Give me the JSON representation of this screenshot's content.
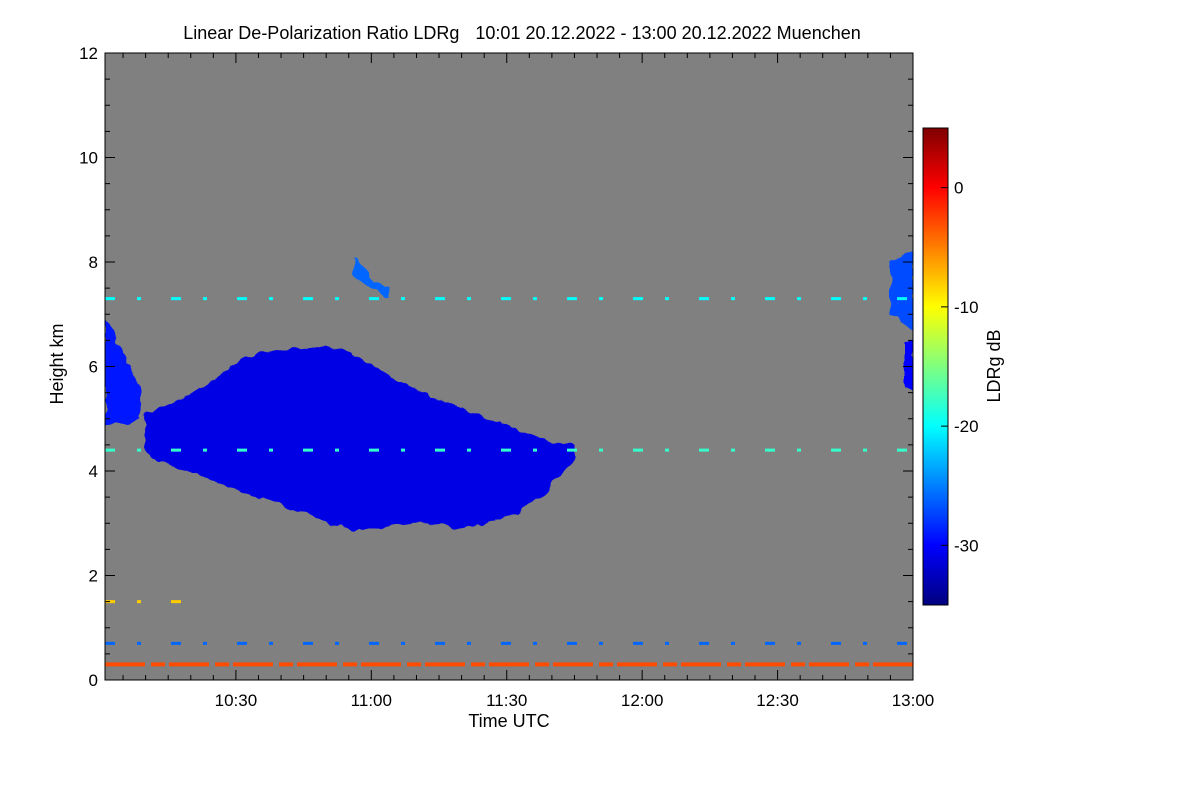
{
  "chart_data": {
    "type": "heatmap",
    "title": "Linear De-Polarization Ratio LDRg",
    "time_range": "10:01 20.12.2022 - 13:00 20.12.2022",
    "location": "Muenchen",
    "xlabel": "Time UTC",
    "ylabel": "Height km",
    "x_range_minutes": [
      601,
      780
    ],
    "ylim": [
      0,
      12
    ],
    "x_ticks": [
      {
        "minute": 630,
        "label": "10:30"
      },
      {
        "minute": 660,
        "label": "11:00"
      },
      {
        "minute": 690,
        "label": "11:30"
      },
      {
        "minute": 720,
        "label": "12:00"
      },
      {
        "minute": 750,
        "label": "12:30"
      },
      {
        "minute": 780,
        "label": "13:00"
      }
    ],
    "y_ticks": [
      {
        "value": 0,
        "label": "0"
      },
      {
        "value": 2,
        "label": "2"
      },
      {
        "value": 4,
        "label": "4"
      },
      {
        "value": 6,
        "label": "6"
      },
      {
        "value": 8,
        "label": "8"
      },
      {
        "value": 10,
        "label": "10"
      },
      {
        "value": 12,
        "label": "12"
      }
    ],
    "background_color": "#808080",
    "colorbar": {
      "label": "LDRg dB",
      "range": [
        -35,
        5
      ],
      "ticks": [
        {
          "value": 0,
          "label": "0"
        },
        {
          "value": -10,
          "label": "-10"
        },
        {
          "value": -20,
          "label": "-20"
        },
        {
          "value": -30,
          "label": "-30"
        }
      ],
      "colors": [
        "#00007f",
        "#0000ff",
        "#007fff",
        "#00ffff",
        "#7fff7f",
        "#ffff00",
        "#ff7f00",
        "#ff0000",
        "#7f0000"
      ]
    },
    "regions": [
      {
        "name": "main-cloud",
        "ldr_db": -31,
        "t_start": 610,
        "t_end": 705,
        "top_km": [
          5.1,
          5.3,
          5.6,
          6.0,
          6.3,
          6.3,
          6.4,
          6.3,
          6.0,
          5.7,
          5.4,
          5.2,
          5.0,
          4.8,
          4.6,
          4.5
        ],
        "base_km": [
          4.3,
          4.1,
          3.9,
          3.7,
          3.5,
          3.3,
          3.1,
          2.9,
          2.9,
          3.0,
          3.0,
          2.9,
          3.0,
          3.2,
          3.6,
          4.2
        ]
      },
      {
        "name": "upper-left-cloud",
        "ldr_db": -29,
        "t_start": 601,
        "t_end": 609,
        "top_km": [
          7.0,
          6.5,
          6.0,
          5.6
        ],
        "base_km": [
          4.9,
          4.9,
          4.9,
          5.0
        ]
      },
      {
        "name": "right-edge-cloud-upper",
        "ldr_db": -27,
        "t_start": 775,
        "t_end": 780,
        "top_km": [
          8.0,
          8.2
        ],
        "base_km": [
          7.0,
          6.7
        ]
      },
      {
        "name": "right-edge-cloud-lower",
        "ldr_db": -30,
        "t_start": 778,
        "t_end": 780,
        "top_km": [
          6.5,
          6.5
        ],
        "base_km": [
          5.6,
          5.5
        ]
      },
      {
        "name": "cirrus-streak",
        "ldr_db": -26,
        "t_start": 656,
        "t_end": 664,
        "top_km": [
          8.1,
          7.7,
          7.5
        ],
        "base_km": [
          7.8,
          7.5,
          7.3
        ]
      }
    ],
    "layers": [
      {
        "name": "aerosol-layer-7.3km",
        "height_km": 7.3,
        "ldr_db": -20,
        "t_start": 601,
        "t_end": 780
      },
      {
        "name": "layer-4.4km",
        "height_km": 4.4,
        "ldr_db": -18,
        "t_start": 601,
        "t_end": 780
      },
      {
        "name": "layer-1.5km",
        "height_km": 1.5,
        "ldr_db": -8,
        "t_start": 601,
        "t_end": 620
      },
      {
        "name": "layer-0.7km",
        "height_km": 0.7,
        "ldr_db": -26,
        "t_start": 601,
        "t_end": 780
      },
      {
        "name": "surface-layer-0.3km",
        "height_km": 0.3,
        "ldr_db": -3,
        "t_start": 601,
        "t_end": 780
      }
    ]
  }
}
